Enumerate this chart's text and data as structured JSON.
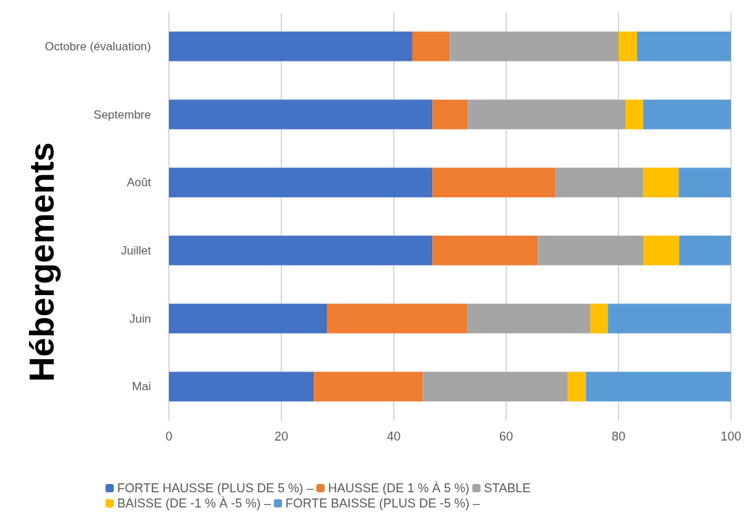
{
  "chart_data": {
    "type": "bar",
    "orientation": "horizontal",
    "stacked": true,
    "ylabel": "Hébergements",
    "categories": [
      "Octobre (évaluation)",
      "Septembre",
      "Août",
      "Juillet",
      "Juin",
      "Mai"
    ],
    "series": [
      {
        "name": "FORTE HAUSSE (PLUS DE 5 %) –",
        "color": "#4472c4",
        "values": [
          43.3,
          46.9,
          46.9,
          46.9,
          28.1,
          25.8
        ]
      },
      {
        "name": "HAUSSE (DE 1 % À 5 %)",
        "color": "#ed7d31",
        "values": [
          6.7,
          6.3,
          21.9,
          18.8,
          25,
          19.4
        ]
      },
      {
        "name": "STABLE",
        "color": "#a5a5a5",
        "values": [
          30,
          28.1,
          15.6,
          18.8,
          21.9,
          25.8
        ]
      },
      {
        "name": "BAISSE (DE -1 % À -5 %) –",
        "color": "#ffc000",
        "values": [
          3.3,
          3.1,
          6.3,
          6.3,
          3.1,
          3.2
        ]
      },
      {
        "name": "FORTE BAISSE (PLUS DE -5 %) –",
        "color": "#5b9bd5",
        "values": [
          16.7,
          15.6,
          9.4,
          9.4,
          21.9,
          25.8
        ]
      }
    ],
    "xlim": [
      0,
      100
    ],
    "xticks": [
      0,
      20,
      40,
      60,
      80,
      100
    ],
    "grid": "x",
    "legend": "bottom"
  }
}
